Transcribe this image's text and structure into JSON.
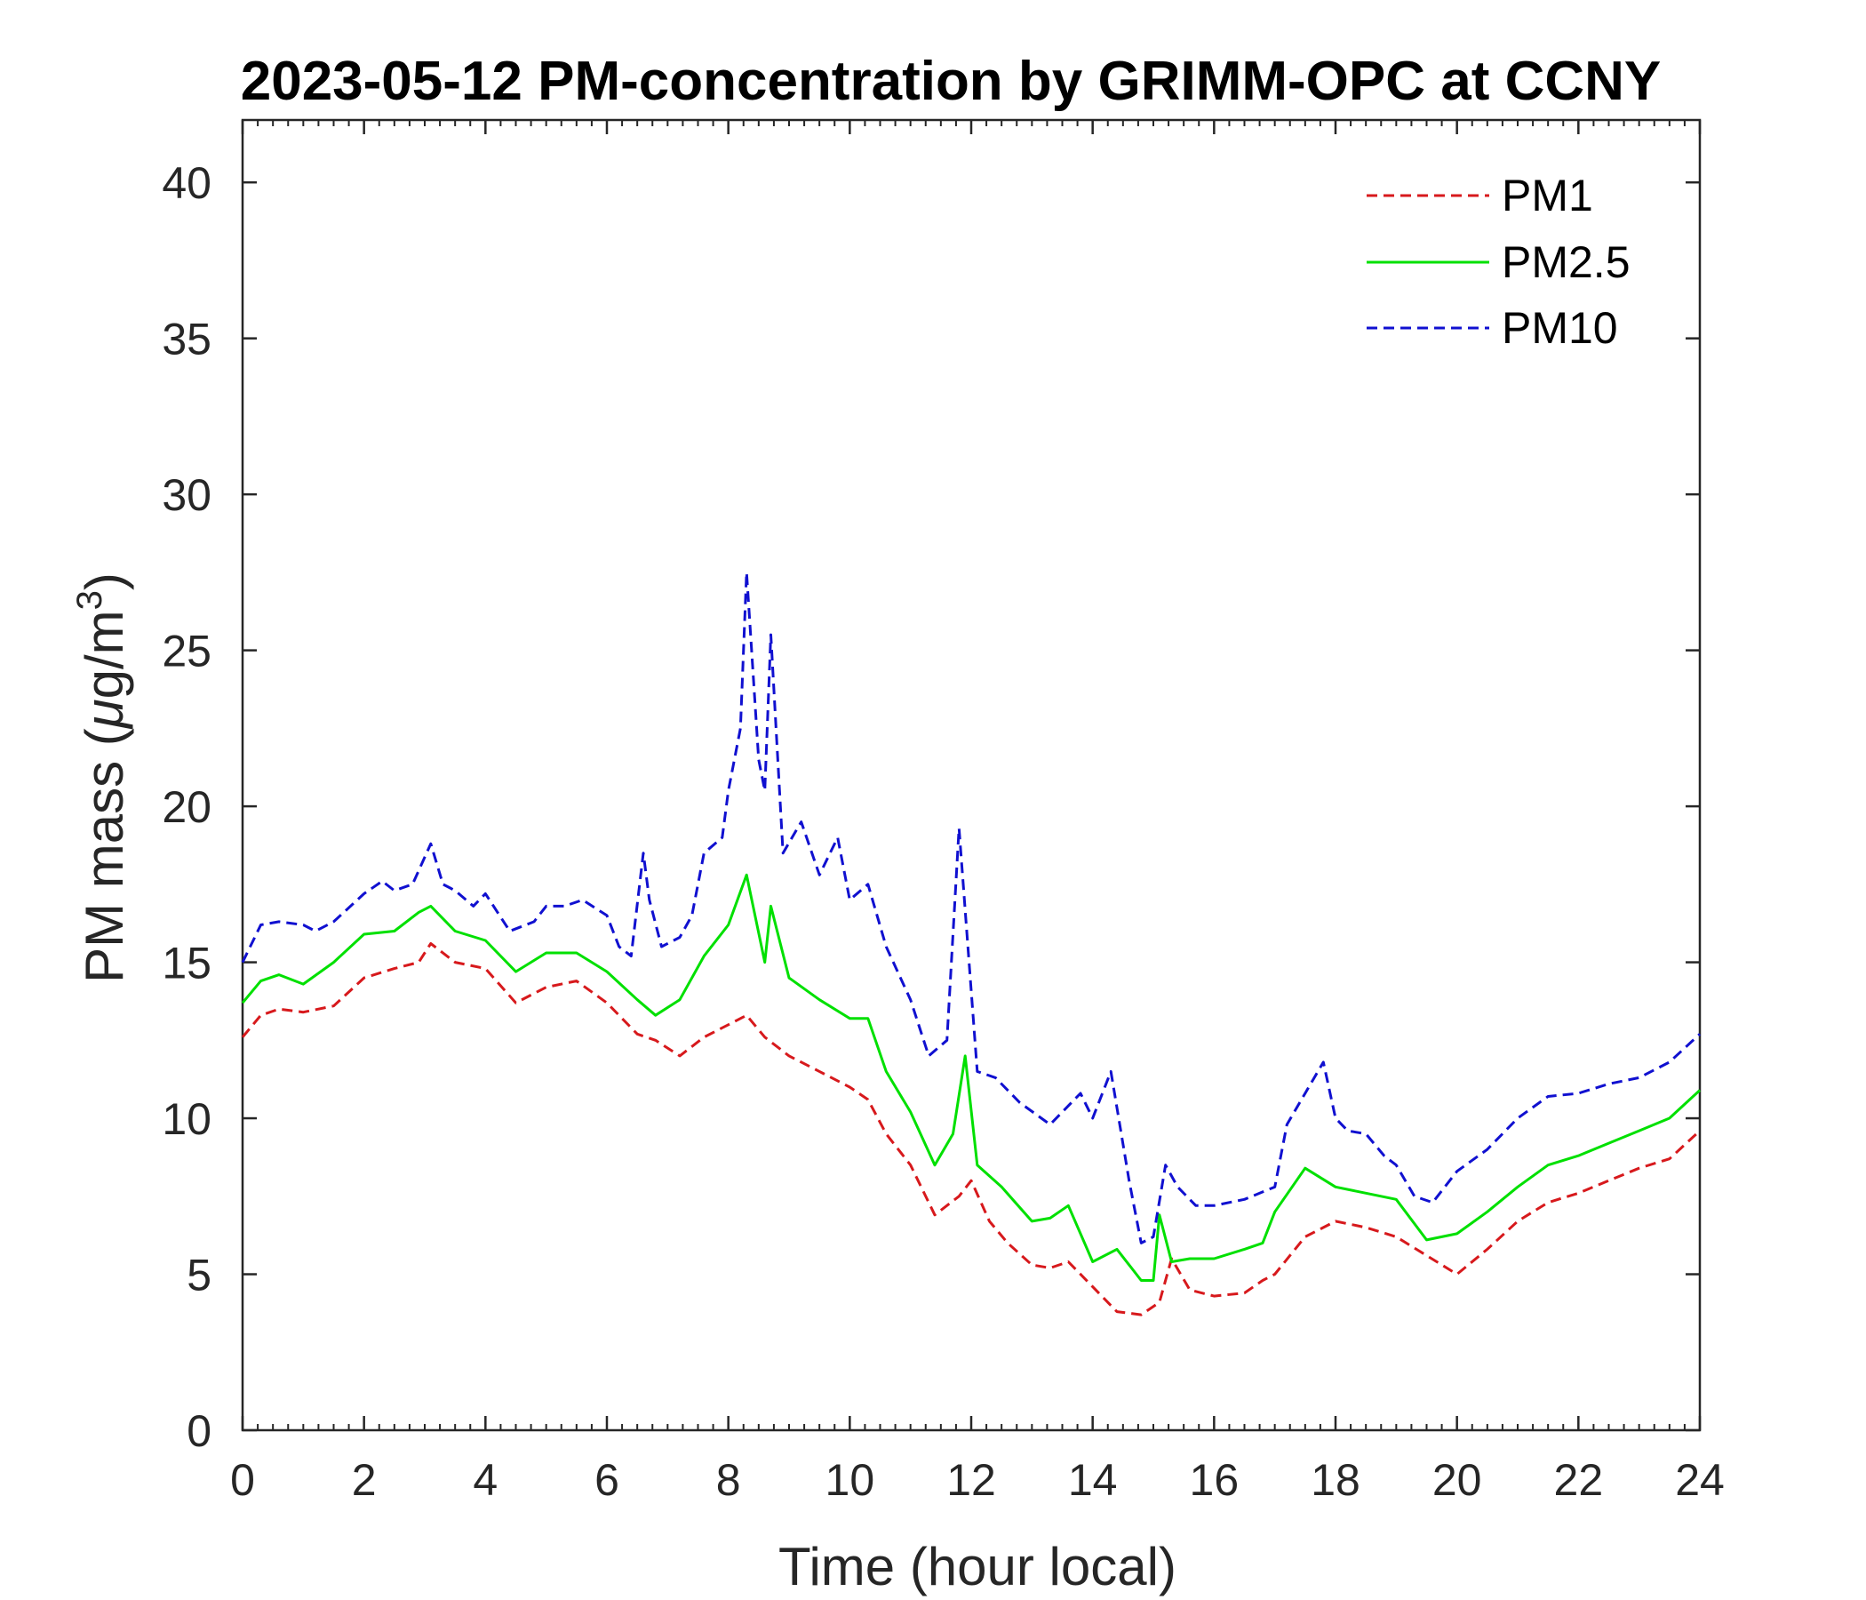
{
  "chart_data": {
    "type": "line",
    "title": "2023-05-12 PM-concentration by GRIMM-OPC at CCNY",
    "xlabel": "Time (hour local)",
    "ylabel_main": "PM mass (",
    "ylabel_mu": "μ",
    "ylabel_unit": "g/m",
    "ylabel_exp": "3",
    "ylabel_close": ")",
    "xlim": [
      0,
      24
    ],
    "ylim": [
      0,
      42
    ],
    "xticks": [
      0,
      2,
      4,
      6,
      8,
      10,
      12,
      14,
      16,
      18,
      20,
      22,
      24
    ],
    "xtick_labels": [
      "0",
      "2",
      "4",
      "6",
      "8",
      "10",
      "12",
      "14",
      "16",
      "18",
      "20",
      "22",
      "24"
    ],
    "yticks": [
      0,
      5,
      10,
      15,
      20,
      25,
      30,
      35,
      40
    ],
    "ytick_labels": [
      "0",
      "5",
      "10",
      "15",
      "20",
      "25",
      "30",
      "35",
      "40"
    ],
    "legend_position": "top-right",
    "series": [
      {
        "name": "PM1",
        "color": "#d7191c",
        "dash": "dashed",
        "x": [
          0,
          0.3,
          0.6,
          1,
          1.5,
          2,
          2.5,
          2.9,
          3.1,
          3.5,
          4,
          4.5,
          5,
          5.5,
          6,
          6.5,
          6.8,
          7.2,
          7.6,
          8,
          8.3,
          8.6,
          9,
          9.5,
          10,
          10.3,
          10.6,
          11,
          11.4,
          11.8,
          12,
          12.3,
          12.6,
          13,
          13.3,
          13.6,
          14,
          14.4,
          14.8,
          15.1,
          15.3,
          15.6,
          16,
          16.5,
          16.8,
          17,
          17.5,
          18,
          18.5,
          19,
          19.5,
          20,
          20.5,
          21,
          21.5,
          22,
          22.5,
          23,
          23.5,
          24
        ],
        "y": [
          12.6,
          13.3,
          13.5,
          13.4,
          13.6,
          14.5,
          14.8,
          15.0,
          15.6,
          15.0,
          14.8,
          13.7,
          14.2,
          14.4,
          13.7,
          12.7,
          12.5,
          12.0,
          12.6,
          13.0,
          13.3,
          12.6,
          12.0,
          11.5,
          11.0,
          10.6,
          9.5,
          8.5,
          6.9,
          7.5,
          8.0,
          6.7,
          6.0,
          5.3,
          5.2,
          5.4,
          4.6,
          3.8,
          3.7,
          4.1,
          5.5,
          4.5,
          4.3,
          4.4,
          4.8,
          5.0,
          6.2,
          6.7,
          6.5,
          6.2,
          5.6,
          5.0,
          5.8,
          6.7,
          7.3,
          7.6,
          8.0,
          8.4,
          8.7,
          9.6
        ]
      },
      {
        "name": "PM2.5",
        "color": "#00e000",
        "dash": "solid",
        "x": [
          0,
          0.3,
          0.6,
          1,
          1.5,
          2,
          2.5,
          2.9,
          3.1,
          3.5,
          4,
          4.5,
          5,
          5.5,
          6,
          6.5,
          6.8,
          7.2,
          7.6,
          8,
          8.3,
          8.6,
          8.7,
          9,
          9.5,
          10,
          10.3,
          10.6,
          11,
          11.4,
          11.7,
          11.9,
          12.1,
          12.5,
          13,
          13.3,
          13.6,
          14,
          14.4,
          14.8,
          15.0,
          15.1,
          15.3,
          15.6,
          16,
          16.5,
          16.8,
          17,
          17.5,
          18,
          18.5,
          19,
          19.5,
          20,
          20.5,
          21,
          21.5,
          22,
          22.5,
          23,
          23.5,
          24
        ],
        "y": [
          13.7,
          14.4,
          14.6,
          14.3,
          15.0,
          15.9,
          16.0,
          16.6,
          16.8,
          16.0,
          15.7,
          14.7,
          15.3,
          15.3,
          14.7,
          13.8,
          13.3,
          13.8,
          15.2,
          16.2,
          17.8,
          15.0,
          16.8,
          14.5,
          13.8,
          13.2,
          13.2,
          11.5,
          10.2,
          8.5,
          9.5,
          12.0,
          8.5,
          7.8,
          6.7,
          6.8,
          7.2,
          5.4,
          5.8,
          4.8,
          4.8,
          6.9,
          5.4,
          5.5,
          5.5,
          5.8,
          6.0,
          7.0,
          8.4,
          7.8,
          7.6,
          7.4,
          6.1,
          6.3,
          7.0,
          7.8,
          8.5,
          8.8,
          9.2,
          9.6,
          10.0,
          10.9
        ]
      },
      {
        "name": "PM10",
        "color": "#1010d0",
        "dash": "dashed",
        "x": [
          0,
          0.3,
          0.6,
          1,
          1.2,
          1.5,
          2,
          2.3,
          2.5,
          2.8,
          3.1,
          3.3,
          3.5,
          3.8,
          4,
          4.4,
          4.8,
          5,
          5.3,
          5.6,
          6,
          6.2,
          6.4,
          6.6,
          6.7,
          6.9,
          7.2,
          7.4,
          7.6,
          7.9,
          8,
          8.2,
          8.3,
          8.5,
          8.6,
          8.7,
          8.9,
          9.2,
          9.5,
          9.8,
          10,
          10.3,
          10.6,
          11,
          11.3,
          11.6,
          11.8,
          12.1,
          12.4,
          12.8,
          13.3,
          13.8,
          14,
          14.3,
          14.6,
          14.8,
          15.0,
          15.2,
          15.4,
          15.7,
          16,
          16.5,
          17,
          17.2,
          17.5,
          17.8,
          18,
          18.2,
          18.5,
          18.8,
          19,
          19.3,
          19.6,
          20,
          20.5,
          21,
          21.5,
          22,
          22.5,
          23,
          23.5,
          24
        ],
        "y": [
          15.0,
          16.2,
          16.3,
          16.2,
          16.0,
          16.3,
          17.2,
          17.6,
          17.3,
          17.5,
          18.8,
          17.5,
          17.3,
          16.8,
          17.2,
          16.0,
          16.3,
          16.8,
          16.8,
          17.0,
          16.5,
          15.5,
          15.2,
          18.5,
          17.0,
          15.5,
          15.8,
          16.5,
          18.5,
          19.0,
          20.5,
          22.5,
          27.5,
          21.5,
          20.5,
          25.5,
          18.5,
          19.5,
          17.8,
          19.0,
          17.0,
          17.5,
          15.5,
          13.8,
          12.0,
          12.5,
          19.3,
          11.5,
          11.3,
          10.5,
          9.8,
          10.8,
          10.0,
          11.5,
          8.0,
          6.0,
          6.2,
          8.5,
          7.8,
          7.2,
          7.2,
          7.4,
          7.8,
          9.8,
          10.8,
          11.8,
          10.0,
          9.6,
          9.5,
          8.8,
          8.5,
          7.5,
          7.3,
          8.3,
          9.0,
          10.0,
          10.7,
          10.8,
          11.1,
          11.3,
          11.8,
          12.7
        ]
      }
    ]
  }
}
